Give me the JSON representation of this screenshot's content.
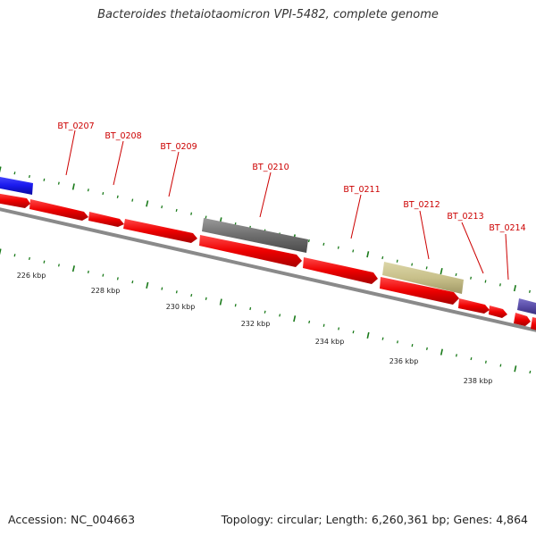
{
  "title": "Bacteroides thetaiotaomicron VPI-5482, complete genome",
  "accession": "Accession: NC_004663",
  "summary": "Topology: circular; Length: 6,260,361 bp; Genes: 4,864",
  "colors": {
    "backbone": "#8a8a8a",
    "gene_forward": "#ee0000",
    "gene_reverse": "#1a1aee",
    "gene_gray": "#6e6e6e",
    "gene_khaki": "#c8c08a",
    "gene_purple": "#5a4ea8",
    "tick": "#1a7a1a",
    "label": "#cc0000"
  },
  "gene_labels": [
    "BT_0207",
    "BT_0208",
    "BT_0209",
    "BT_0210",
    "BT_0211",
    "BT_0212",
    "BT_0213",
    "BT_0214"
  ],
  "scale_labels": [
    "226 kbp",
    "228 kbp",
    "230 kbp",
    "232 kbp",
    "234 kbp",
    "236 kbp",
    "238 kbp"
  ]
}
